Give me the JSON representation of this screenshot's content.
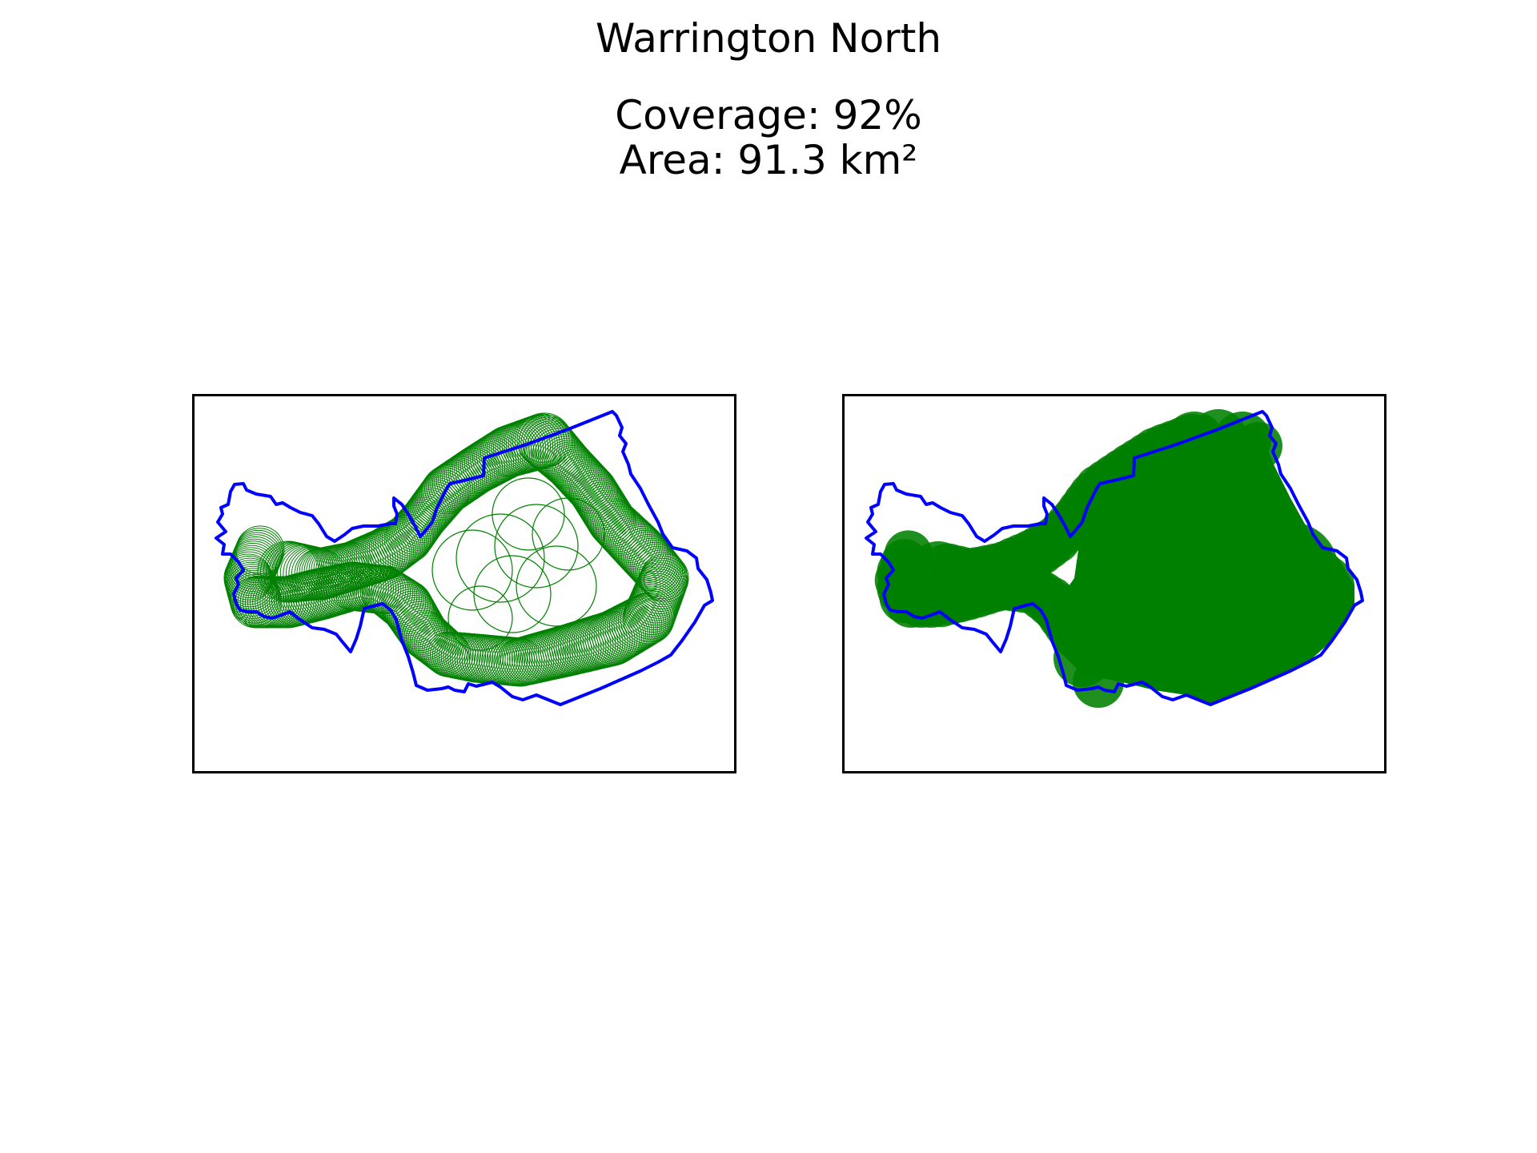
{
  "figure": {
    "title": "Warrington North",
    "coverage_text": "Coverage: 92%",
    "area_text": "Area: 91.3 km²"
  },
  "panels": [
    {
      "name": "coverage-circles-outline",
      "style": "outlined circles"
    },
    {
      "name": "coverage-circles-filled",
      "style": "filled circles"
    }
  ],
  "colors": {
    "boundary": "#0000ff",
    "coverage": "#008000",
    "frame": "#000000",
    "background": "#ffffff"
  },
  "legend": "none",
  "axes_visible": false
}
